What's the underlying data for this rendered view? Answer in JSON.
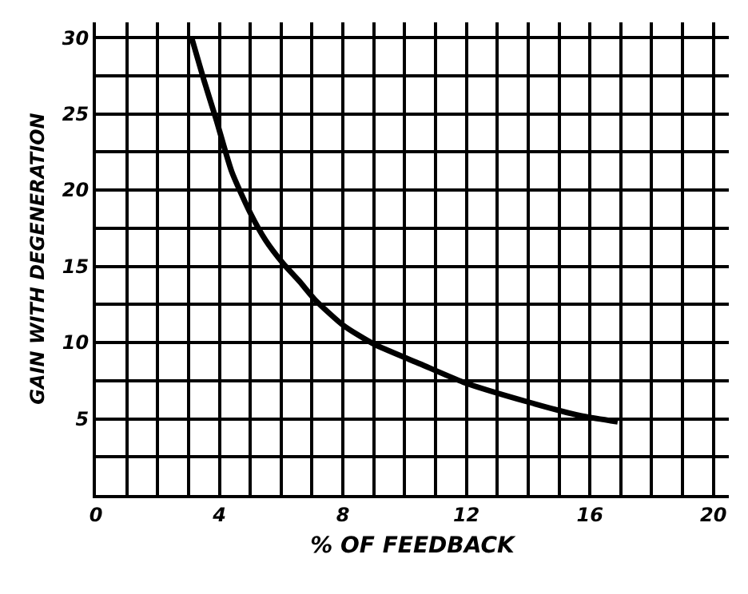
{
  "chart_data": {
    "type": "line",
    "xlabel": "% OF FEEDBACK",
    "ylabel": "GAIN WITH DEGENERATION",
    "x": [
      3.1,
      3.5,
      3.9,
      4.4,
      5.0,
      5.5,
      6.06,
      6.6,
      7.1,
      8.03,
      9.0,
      10.5,
      11.9,
      14.0,
      15.7,
      16.9
    ],
    "series": [
      {
        "color": "#000000",
        "values": [
          30,
          27.2,
          24.6,
          21.2,
          18.5,
          16.7,
          15.2,
          14,
          12.8,
          11.1,
          9.9,
          8.6,
          7.4,
          6.1,
          5.2,
          4.8
        ]
      }
    ],
    "xlim": [
      0,
      20.5
    ],
    "ylim": [
      0,
      31
    ],
    "xticks": [
      0,
      {
        "value": 1,
        "label": null
      },
      {
        "value": 2,
        "label": null
      },
      {
        "value": 3,
        "label": null
      },
      4,
      {
        "value": 5,
        "label": null
      },
      {
        "value": 6,
        "label": null
      },
      {
        "value": 7,
        "label": null
      },
      8,
      {
        "value": 9,
        "label": null
      },
      {
        "value": 10,
        "label": null
      },
      {
        "value": 11,
        "label": null
      },
      12,
      {
        "value": 13,
        "label": null
      },
      {
        "value": 14,
        "label": null
      },
      {
        "value": 15,
        "label": null
      },
      16,
      {
        "value": 17,
        "label": null
      },
      {
        "value": 18,
        "label": null
      },
      {
        "value": 19,
        "label": null
      },
      20
    ],
    "yticks": [
      {
        "value": 0,
        "label": null
      },
      {
        "value": 2.5,
        "label": null
      },
      5,
      {
        "value": 7.5,
        "label": null
      },
      10,
      {
        "value": 12.5,
        "label": null
      },
      15,
      {
        "value": 17.5,
        "label": null
      },
      20,
      {
        "value": 22.5,
        "label": null
      },
      25,
      {
        "value": 27.5,
        "label": null
      },
      30
    ],
    "grid": true,
    "marker": "none",
    "line_style": "solid"
  }
}
